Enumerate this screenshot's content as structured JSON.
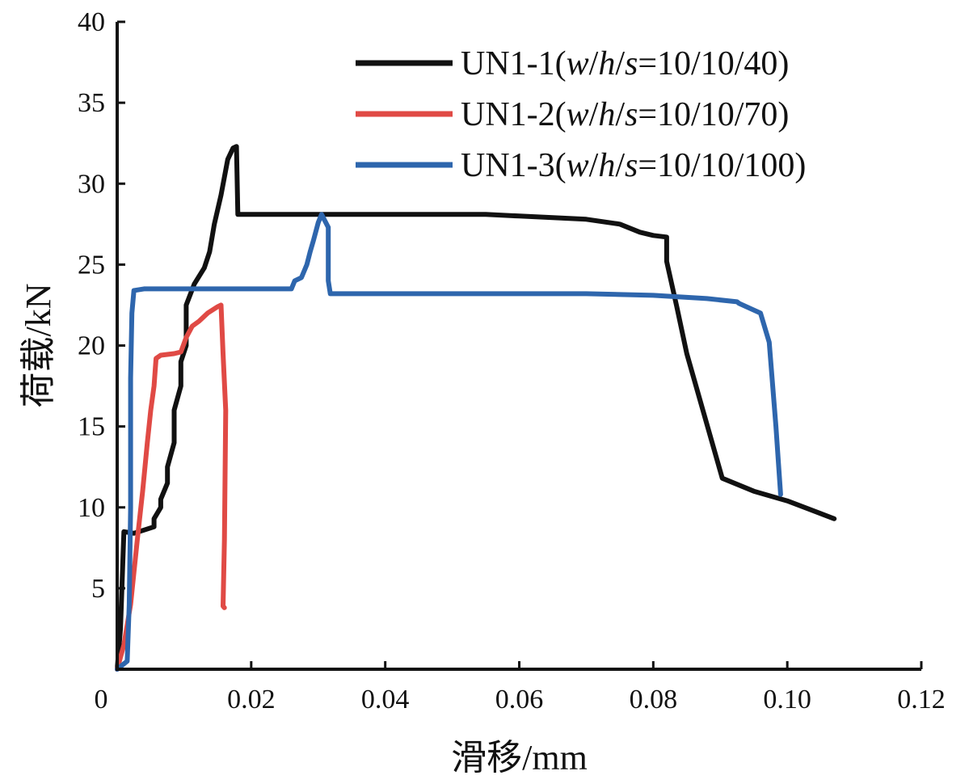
{
  "chart_data": {
    "type": "line",
    "xlabel": "滑移/mm",
    "ylabel": "荷载/kN",
    "xlim": [
      0,
      0.12
    ],
    "ylim": [
      0,
      40
    ],
    "x_ticks": [
      {
        "value": 0,
        "label": "0"
      },
      {
        "value": 0.02,
        "label": "0.02"
      },
      {
        "value": 0.04,
        "label": "0.04"
      },
      {
        "value": 0.06,
        "label": "0.06"
      },
      {
        "value": 0.08,
        "label": "0.08"
      },
      {
        "value": 0.1,
        "label": "0.10"
      },
      {
        "value": 0.12,
        "label": "0.12"
      }
    ],
    "y_ticks": [
      {
        "value": 5,
        "label": "5"
      },
      {
        "value": 10,
        "label": "10"
      },
      {
        "value": 15,
        "label": "15"
      },
      {
        "value": 20,
        "label": "20"
      },
      {
        "value": 25,
        "label": "25"
      },
      {
        "value": 30,
        "label": "30"
      },
      {
        "value": 35,
        "label": "35"
      },
      {
        "value": 40,
        "label": "40"
      }
    ],
    "grid": false,
    "legend_position": "top-right",
    "series": [
      {
        "name": "UN1-1",
        "name_params": "w/h/s",
        "name_values": "10/10/40",
        "color": "#111111",
        "x": [
          0,
          0.0005,
          0.001,
          0.0025,
          0.004,
          0.0055,
          0.0055,
          0.0065,
          0.0065,
          0.0075,
          0.0075,
          0.0085,
          0.0085,
          0.0095,
          0.0095,
          0.0103,
          0.0103,
          0.0115,
          0.013,
          0.0138,
          0.0145,
          0.0155,
          0.0165,
          0.0173,
          0.0178,
          0.018,
          0.0183,
          0.0183,
          0.025,
          0.035,
          0.045,
          0.055,
          0.06,
          0.065,
          0.07,
          0.075,
          0.078,
          0.08,
          0.082,
          0.082,
          0.0835,
          0.085,
          0.0903,
          0.095,
          0.1,
          0.107
        ],
        "y": [
          0,
          2.5,
          8.5,
          8.4,
          8.6,
          8.8,
          9.3,
          10,
          10.5,
          11.5,
          12.5,
          14,
          16,
          17.5,
          19,
          20,
          22.5,
          23.8,
          24.8,
          25.8,
          27.5,
          29.3,
          31.5,
          32.2,
          32.3,
          28.1,
          28.1,
          28.1,
          28.1,
          28.1,
          28.1,
          28.1,
          28.0,
          27.9,
          27.8,
          27.5,
          27.0,
          26.8,
          26.7,
          25.2,
          22.4,
          19.5,
          11.8,
          11.0,
          10.4,
          9.3
        ]
      },
      {
        "name": "UN1-2",
        "name_params": "w/h/s",
        "name_values": "10/10/70",
        "color": "#e04a45",
        "x": [
          0,
          0.001,
          0.002,
          0.003,
          0.0038,
          0.0045,
          0.005,
          0.0055,
          0.0058,
          0.0065,
          0.0085,
          0.0095,
          0.0103,
          0.0112,
          0.0122,
          0.0135,
          0.015,
          0.0155,
          0.0158,
          0.0162,
          0.016,
          0.0158,
          0.016
        ],
        "y": [
          0,
          1.5,
          4,
          8,
          11,
          14,
          16,
          17.5,
          19.2,
          19.4,
          19.5,
          19.6,
          20.5,
          21.2,
          21.5,
          22.0,
          22.4,
          22.5,
          19.5,
          16,
          8,
          3.9,
          3.8
        ]
      },
      {
        "name": "UN1-3",
        "name_params": "w/h/s",
        "name_values": "10/10/100",
        "color": "#2e66ad",
        "x": [
          0,
          0.0015,
          0.0018,
          0.002,
          0.002,
          0.0022,
          0.0025,
          0.004,
          0.01,
          0.02,
          0.026,
          0.0265,
          0.0275,
          0.0283,
          0.0288,
          0.0293,
          0.03,
          0.0305,
          0.0315,
          0.0315,
          0.0318,
          0.04,
          0.05,
          0.06,
          0.07,
          0.08,
          0.088,
          0.0925,
          0.0928,
          0.096,
          0.0973,
          0.0983,
          0.099
        ],
        "y": [
          0,
          0.5,
          4,
          10,
          18,
          22,
          23.4,
          23.5,
          23.5,
          23.5,
          23.5,
          24.0,
          24.2,
          25.0,
          25.8,
          26.5,
          27.6,
          28.1,
          27.3,
          24.0,
          23.2,
          23.2,
          23.2,
          23.2,
          23.2,
          23.1,
          22.9,
          22.7,
          22.6,
          22.0,
          20.2,
          15.0,
          10.8
        ]
      }
    ]
  }
}
